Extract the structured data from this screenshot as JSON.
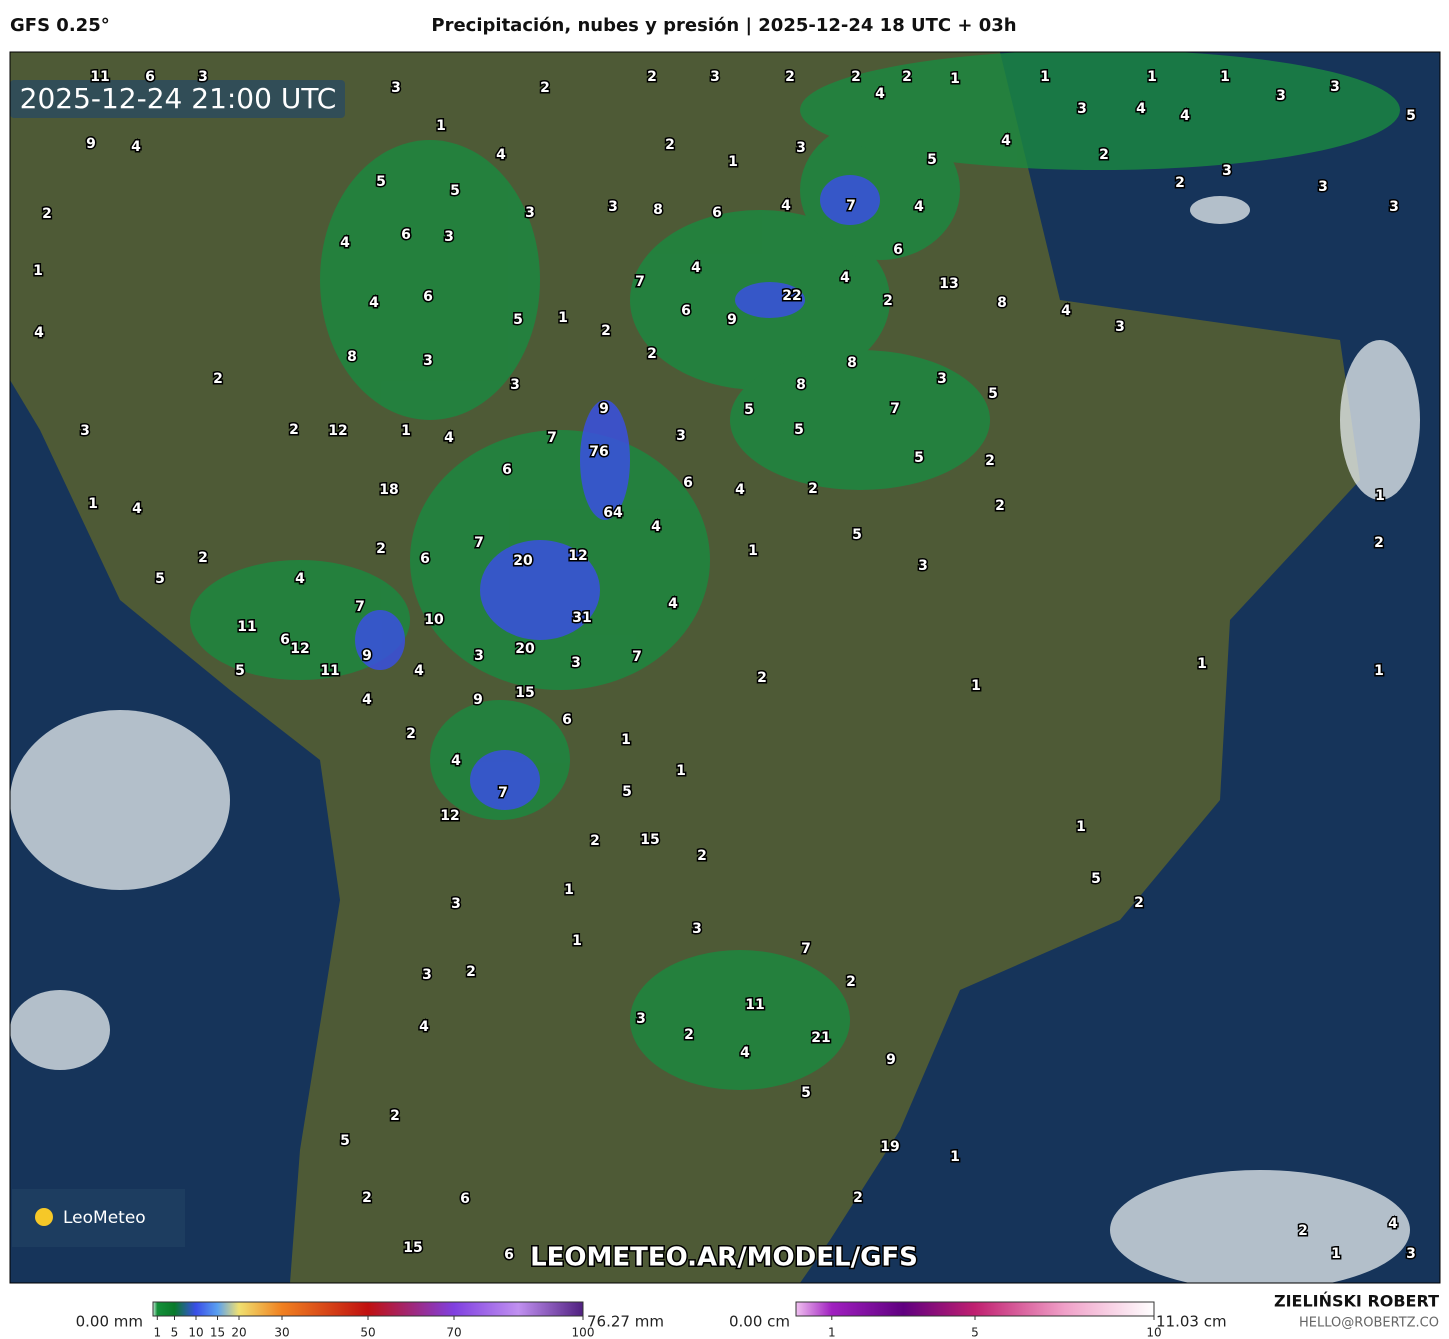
{
  "header": {
    "model": "GFS 0.25°",
    "title": "Precipitación, nubes y presión | 2025-12-24 18 UTC + 03h"
  },
  "map": {
    "timestamp": "2025-12-24 21:00 UTC",
    "watermark": "LEOMETEO.AR/MODEL/GFS",
    "logo": "LeoMeteo",
    "labels": [
      11,
      6,
      3,
      3,
      1,
      2,
      2,
      3,
      2,
      2,
      2,
      1,
      1,
      1,
      1,
      3,
      3,
      4,
      3,
      4,
      4,
      5,
      9,
      4,
      4,
      2,
      1,
      3,
      4,
      5,
      2,
      2,
      3,
      3,
      3,
      5,
      5,
      2,
      3,
      8,
      6,
      4,
      7,
      4,
      6,
      3,
      4,
      3,
      6,
      7,
      4,
      4,
      13,
      1,
      6,
      4,
      5,
      1,
      2,
      6,
      9,
      22,
      2,
      8,
      4,
      3,
      4,
      8,
      3,
      2,
      8,
      3,
      2,
      8,
      3,
      5,
      9,
      5,
      7,
      3,
      2,
      12,
      1,
      4,
      7,
      3,
      5,
      76,
      5,
      2,
      6,
      6,
      4,
      2,
      18,
      1,
      4,
      64,
      4,
      2,
      1,
      5,
      1,
      2,
      7,
      20,
      12,
      2,
      6,
      2,
      3,
      5,
      4,
      4,
      7,
      10,
      31,
      11,
      6,
      12,
      20,
      9,
      3,
      3,
      7,
      1,
      1,
      5,
      11,
      4,
      2,
      1,
      15,
      4,
      9,
      6,
      2,
      1,
      4,
      1,
      7,
      5,
      12,
      15,
      2,
      2,
      1,
      1,
      5,
      3,
      2,
      3,
      1,
      7,
      3,
      2,
      2,
      11,
      3,
      4,
      2,
      21,
      4,
      9,
      5,
      2,
      5,
      19,
      1,
      2,
      6,
      2,
      4,
      2,
      15,
      6,
      1,
      3
    ]
  },
  "precip_legend": {
    "min_label": "0.00 mm",
    "max_label": "76.27 mm",
    "range": [
      0,
      100
    ],
    "ticks": [
      1,
      5,
      10,
      15,
      20,
      30,
      50,
      70,
      100
    ]
  },
  "snow_legend": {
    "min_label": "0.00 cm",
    "max_label": "11.03 cm",
    "range": [
      0,
      10
    ],
    "ticks": [
      1,
      5,
      10
    ]
  },
  "credits": {
    "author": "ZIELIŃSKI ROBERT",
    "contact": "HELLO@ROBERTZ.CO"
  }
}
